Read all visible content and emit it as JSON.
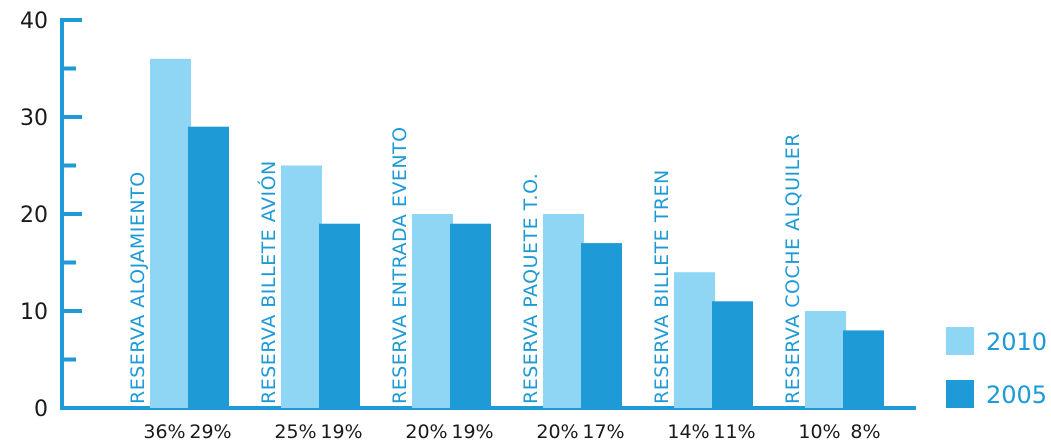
{
  "chart_data": {
    "type": "bar",
    "title": "",
    "xlabel": "",
    "ylabel": "",
    "ylim": [
      0,
      40
    ],
    "yticks": [
      0,
      10,
      20,
      30,
      40
    ],
    "grid": false,
    "legend_placement": "right",
    "categories": [
      "RESERVA ALOJAMIENTO",
      "RESERVA BILLETE AVIÓN",
      "RESERVA ENTRADA EVENTO",
      "RESERVA PAQUETE T.O.",
      "RESERVA BILLETE TREN",
      "RESERVA COCHE ALQUILER"
    ],
    "series": [
      {
        "name": "2010",
        "color": "#8fd6f5",
        "values": [
          36,
          25,
          20,
          20,
          14,
          10
        ],
        "labels": [
          "36%",
          "25%",
          "20%",
          "20%",
          "14%",
          "10%"
        ]
      },
      {
        "name": "2005",
        "color": "#1e9ad6",
        "values": [
          29,
          19,
          19,
          17,
          11,
          8
        ],
        "labels": [
          "29%",
          "19%",
          "19%",
          "17%",
          "11%",
          "8%"
        ]
      }
    ],
    "axis_color": "#1e9ad6"
  }
}
